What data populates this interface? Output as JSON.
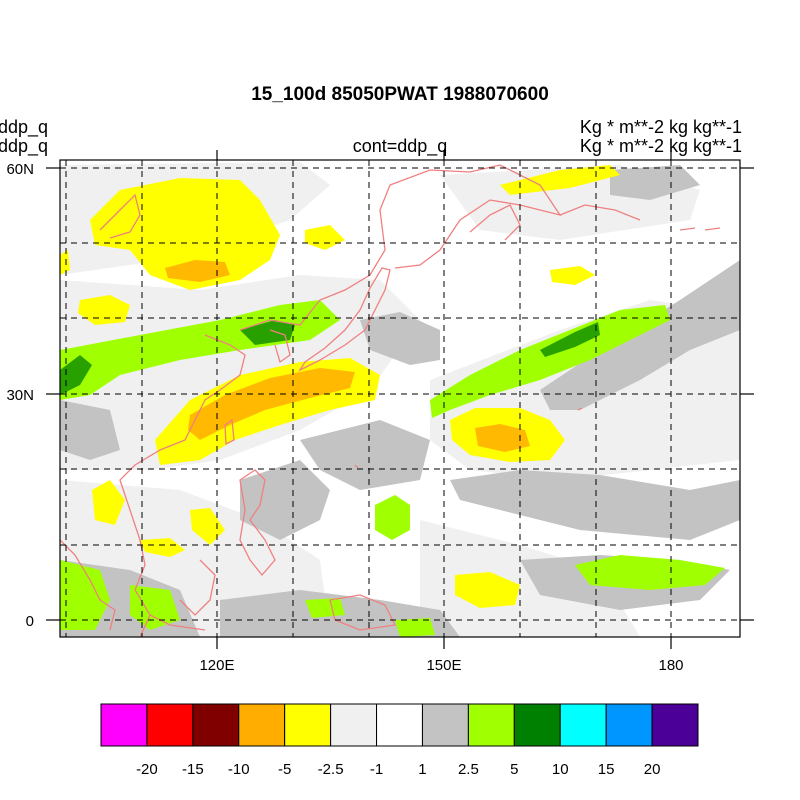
{
  "header": {
    "title": "15_100d 85050PWAT  1988070600",
    "left_line1": "ddp_q",
    "left_line2": "ddp_q",
    "right_line1": "Kg  * m**-2 kg kg**-1",
    "right_line2": "Kg  * m**-2 kg kg**-1",
    "center_line": "cont=ddp_q"
  },
  "chart_data": {
    "type": "heatmap",
    "title": "15_100d 85050PWAT  1988070600",
    "variable": "ddp_q",
    "units": "Kg  * m**-2 kg kg**-1",
    "contour_label": "cont=ddp_q",
    "x_ticks": [
      "120E",
      "150E",
      "180"
    ],
    "y_ticks": [
      "60N",
      "30N",
      "0"
    ],
    "xlim": [
      100,
      188
    ],
    "ylim": [
      -3,
      61
    ],
    "grid": true,
    "colorbar": {
      "labels": [
        "-20",
        "-15",
        "-10",
        "-5",
        "-2.5",
        "-1",
        "1",
        "2.5",
        "5",
        "10",
        "15",
        "20"
      ],
      "colors": [
        "#ff00ff",
        "#ff0000",
        "#800000",
        "#ffad00",
        "#ffff00",
        "#f0f0f0",
        "#ffffff",
        "#c3c3c3",
        "#a0ff00",
        "#008000",
        "#00ffff",
        "#0096ff",
        "#4b0097"
      ]
    }
  }
}
